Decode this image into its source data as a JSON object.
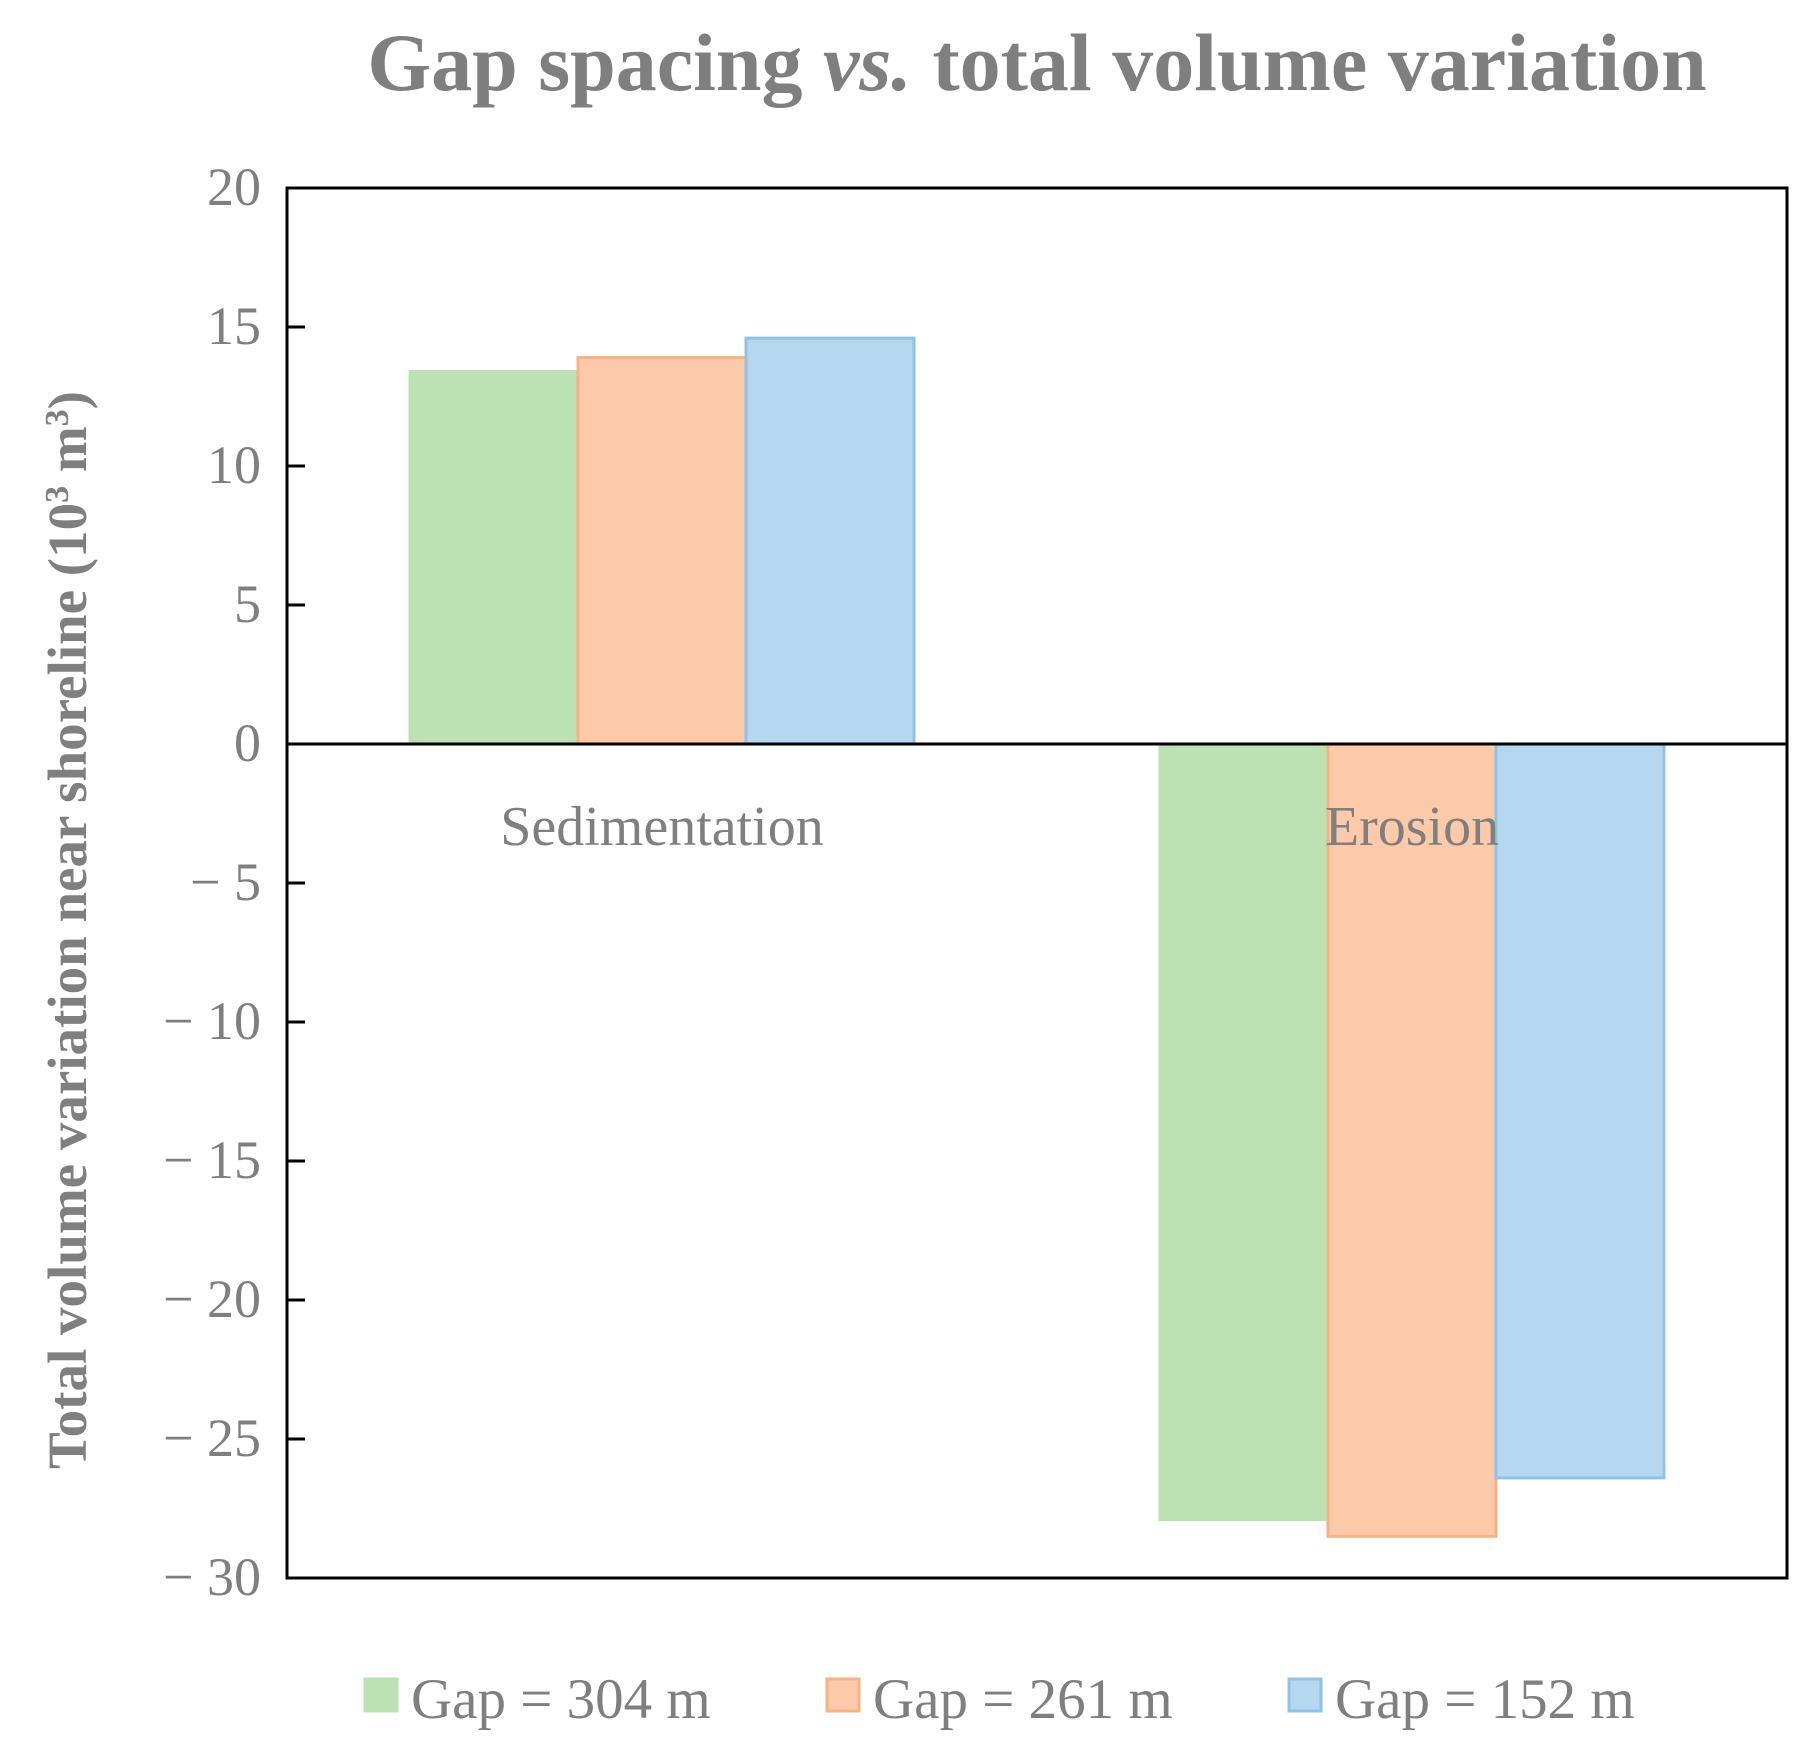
{
  "chart_data": {
    "type": "bar",
    "title": {
      "prefix": "Gap spacing ",
      "italic": "vs.",
      "suffix": " total volume variation"
    },
    "ylabel": {
      "main": "Total volume variation  near shoreline (10",
      "sup": "3",
      "tail": " m",
      "sup2": "3",
      "end": ")"
    },
    "xlabel": "",
    "categories": [
      "Sedimentation",
      "Erosion"
    ],
    "ylim": [
      -30,
      20
    ],
    "yticks": [
      20,
      15,
      10,
      5,
      0,
      -5,
      -10,
      -15,
      -20,
      -25,
      -30
    ],
    "ytick_labels": [
      "20",
      "15",
      "10",
      "5",
      "0",
      "− 5",
      "− 10",
      "− 15",
      "− 20",
      "− 25",
      "− 30"
    ],
    "grid": false,
    "legend_position": "bottom",
    "series": [
      {
        "name": "Gap = 304 m",
        "values": [
          13.4,
          -27.9
        ],
        "color": "#bce2b3",
        "edge": "#bce2b3"
      },
      {
        "name": "Gap = 261 m",
        "values": [
          13.9,
          -28.5
        ],
        "color": "#fdcaa9",
        "edge": "#f6b184"
      },
      {
        "name": "Gap = 152 m",
        "values": [
          14.6,
          -26.4
        ],
        "color": "#b5d7ef",
        "edge": "#8fc3e6"
      }
    ]
  }
}
